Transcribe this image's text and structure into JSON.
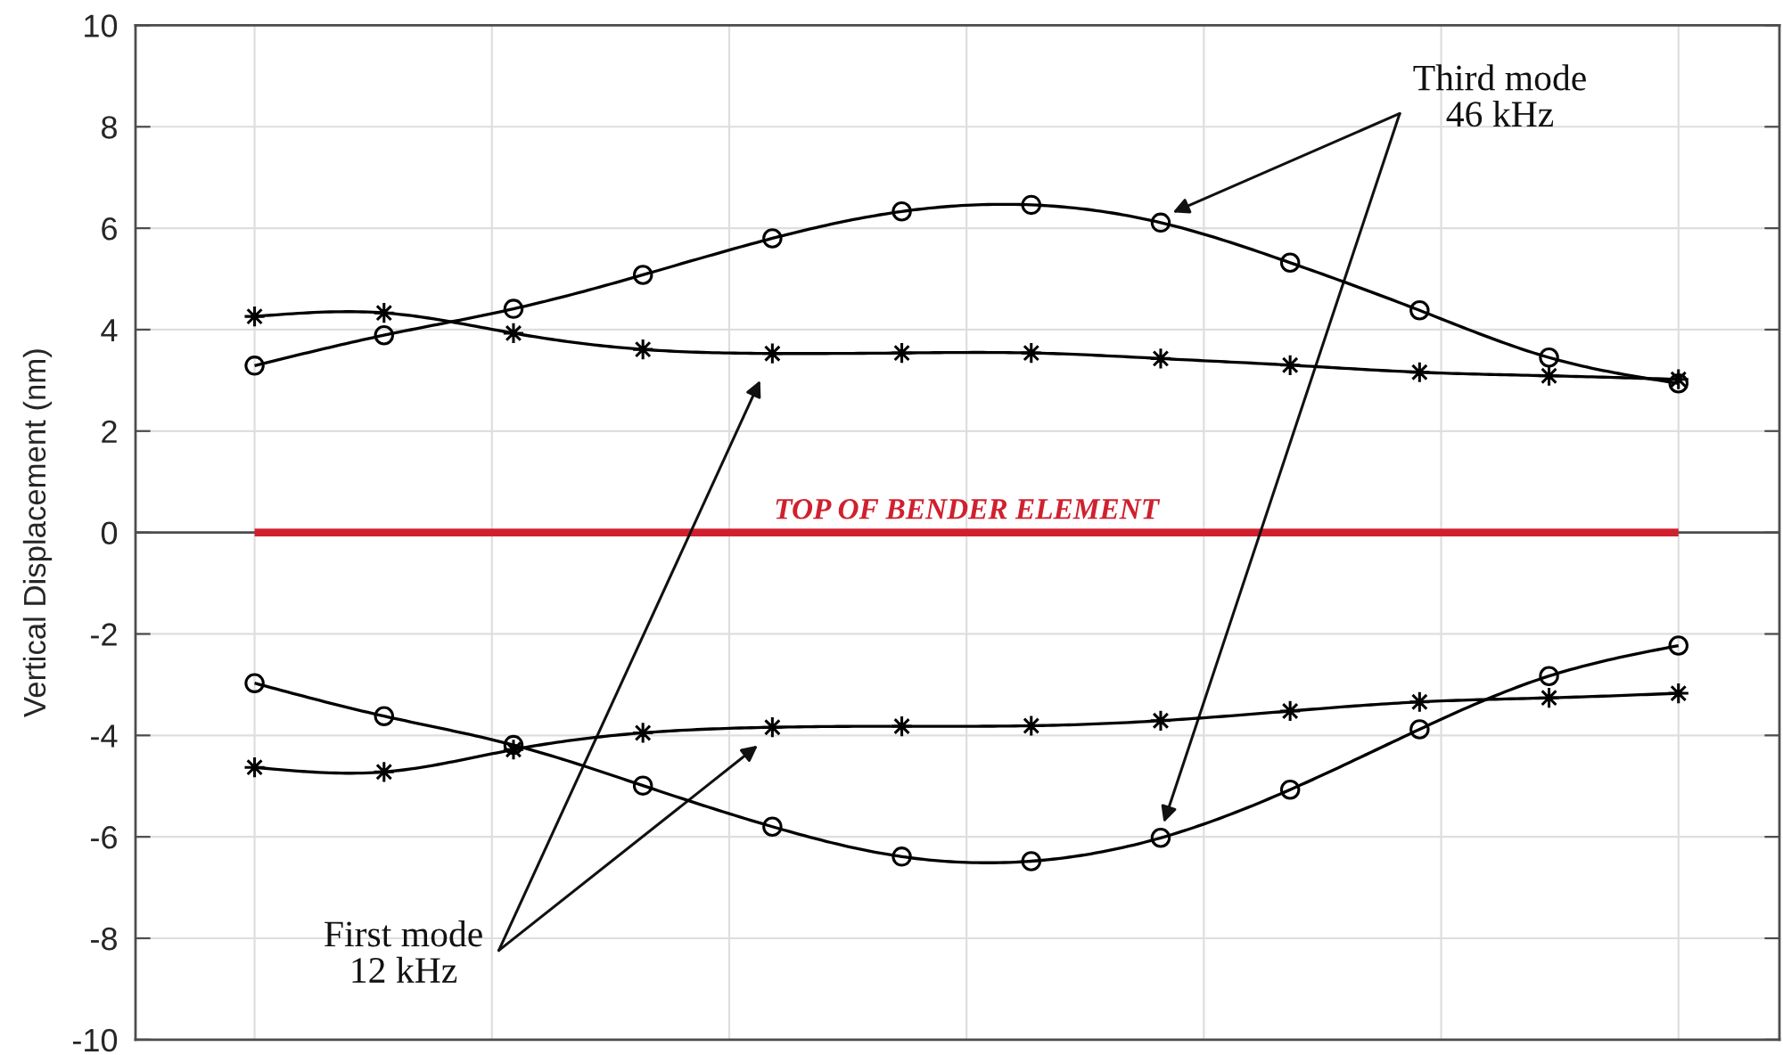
{
  "chart_data": {
    "type": "line",
    "ylabel": "Vertical Displacement (nm)",
    "categories": [
      null,
      null,
      null,
      null,
      null,
      null,
      null,
      null,
      null,
      null,
      null,
      null
    ],
    "ylim": [
      -10,
      10
    ],
    "yticks": [
      -10,
      -8,
      -6,
      -4,
      -2,
      0,
      2,
      4,
      6,
      8,
      10
    ],
    "grid": true,
    "tick_labels": "y",
    "line_style": "solid",
    "series": [
      {
        "color": "#000000",
        "marker": "circle",
        "values": [
          3.29,
          3.89,
          4.41,
          5.08,
          5.8,
          6.33,
          6.46,
          6.11,
          5.32,
          4.38,
          3.45,
          2.94
        ]
      },
      {
        "color": "#000000",
        "marker": "star",
        "values": [
          4.26,
          4.33,
          3.93,
          3.61,
          3.53,
          3.54,
          3.54,
          3.43,
          3.3,
          3.16,
          3.09,
          3.02
        ]
      },
      {
        "color": "#000000",
        "marker": "circle",
        "values": [
          -2.97,
          -3.62,
          -4.19,
          -4.99,
          -5.8,
          -6.39,
          -6.48,
          -6.02,
          -5.07,
          -3.88,
          -2.83,
          -2.23
        ]
      },
      {
        "color": "#000000",
        "marker": "star",
        "values": [
          -4.63,
          -4.72,
          -4.28,
          -3.95,
          -3.84,
          -3.82,
          -3.81,
          -3.71,
          -3.52,
          -3.34,
          -3.26,
          -3.17
        ]
      },
      {
        "name": "TOP OF BENDER ELEMENT",
        "color": "#d0202e",
        "marker": "none",
        "values": [
          0,
          0,
          0,
          0,
          0,
          0,
          0,
          0,
          0,
          0,
          0,
          0
        ]
      }
    ],
    "ref_lines": [
      {
        "axis": "y",
        "value": 0,
        "color": "#4d4d4d"
      }
    ],
    "annotations": [
      "Third mode\n46 kHz",
      "First mode\n12 kHz"
    ]
  }
}
